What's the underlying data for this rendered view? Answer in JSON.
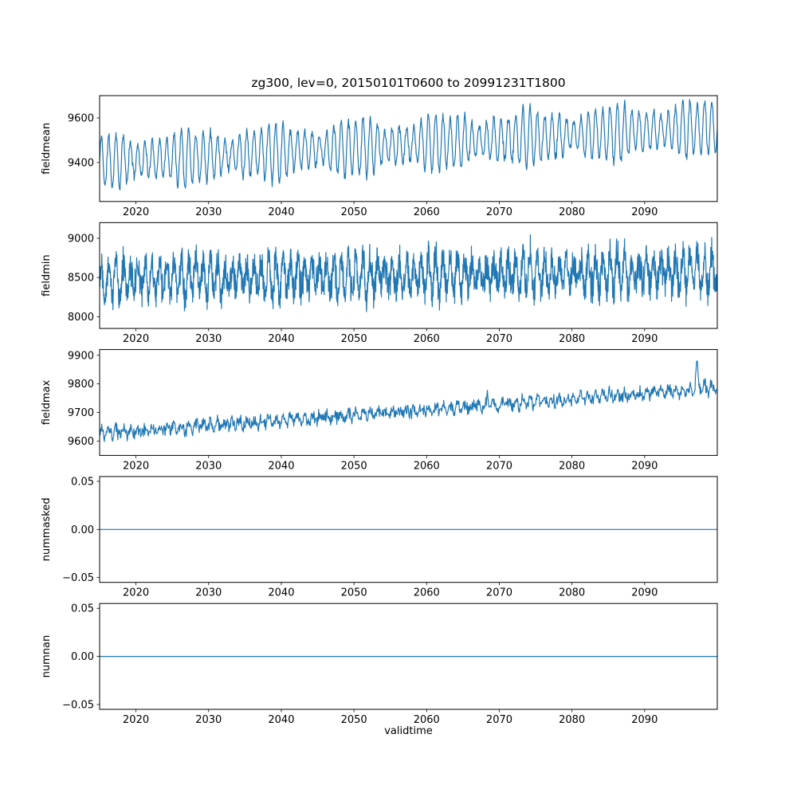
{
  "title": "zg300, lev=0, 20150101T0600 to 20991231T1800",
  "xlabel": "validtime",
  "line_color": "#1f77b4",
  "chart_data": [
    {
      "type": "line",
      "ylabel": "fieldmean",
      "xlim": [
        2015,
        2100
      ],
      "ylim": [
        9225,
        9700
      ],
      "xticks": [
        2020,
        2030,
        2040,
        2050,
        2060,
        2070,
        2080,
        2090
      ],
      "xticklabels": [
        "2020",
        "2030",
        "2040",
        "2050",
        "2060",
        "2070",
        "2080",
        "2090"
      ],
      "yticks": [
        9400,
        9600
      ],
      "yticklabels": [
        "9400",
        "9600"
      ],
      "model": {
        "seed": 11,
        "points_per_year": 16,
        "start": 9402,
        "end": 9558,
        "seasonal_amp": 100,
        "seasonal_period": 1,
        "noise_amp": 27
      }
    },
    {
      "type": "line",
      "ylabel": "fieldmin",
      "xlim": [
        2015,
        2100
      ],
      "ylim": [
        7850,
        9200
      ],
      "xticks": [
        2020,
        2030,
        2040,
        2050,
        2060,
        2070,
        2080,
        2090
      ],
      "xticklabels": [
        "2020",
        "2030",
        "2040",
        "2050",
        "2060",
        "2070",
        "2080",
        "2090"
      ],
      "yticks": [
        8000,
        8500,
        9000
      ],
      "yticklabels": [
        "8000",
        "8500",
        "9000"
      ],
      "model": {
        "seed": 22,
        "points_per_year": 30,
        "start": 8480,
        "end": 8580,
        "seasonal_amp": 190,
        "seasonal_period": 1,
        "noise_amp": 255
      }
    },
    {
      "type": "line",
      "ylabel": "fieldmax",
      "xlim": [
        2015,
        2100
      ],
      "ylim": [
        9550,
        9920
      ],
      "xticks": [
        2020,
        2030,
        2040,
        2050,
        2060,
        2070,
        2080,
        2090
      ],
      "xticklabels": [
        "2020",
        "2030",
        "2040",
        "2050",
        "2060",
        "2070",
        "2080",
        "2090"
      ],
      "yticks": [
        9600,
        9700,
        9800,
        9900
      ],
      "yticklabels": [
        "9600",
        "9700",
        "9800",
        "9900"
      ],
      "model": {
        "seed": 33,
        "points_per_year": 14,
        "start": 9625,
        "end": 9785,
        "seasonal_amp": 12,
        "seasonal_period": 1,
        "noise_amp": 27,
        "spikes": [
          {
            "t": 2097.2,
            "amp": 95,
            "width": 0.2
          },
          {
            "t": 2068.4,
            "amp": 40,
            "width": 0.12
          }
        ]
      }
    },
    {
      "type": "line",
      "ylabel": "nummasked",
      "xlim": [
        2015,
        2100
      ],
      "ylim": [
        -0.055,
        0.055
      ],
      "xticks": [
        2020,
        2030,
        2040,
        2050,
        2060,
        2070,
        2080,
        2090
      ],
      "xticklabels": [
        "2020",
        "2030",
        "2040",
        "2050",
        "2060",
        "2070",
        "2080",
        "2090"
      ],
      "yticks": [
        -0.05,
        0,
        0.05
      ],
      "yticklabels": [
        "−0.05",
        "0.00",
        "0.05"
      ],
      "model": {
        "constant": 0
      }
    },
    {
      "type": "line",
      "ylabel": "numnan",
      "xlim": [
        2015,
        2100
      ],
      "ylim": [
        -0.055,
        0.055
      ],
      "xticks": [
        2020,
        2030,
        2040,
        2050,
        2060,
        2070,
        2080,
        2090
      ],
      "xticklabels": [
        "2020",
        "2030",
        "2040",
        "2050",
        "2060",
        "2070",
        "2080",
        "2090"
      ],
      "yticks": [
        -0.05,
        0,
        0.05
      ],
      "yticklabels": [
        "−0.05",
        "0.00",
        "0.05"
      ],
      "model": {
        "constant": 0
      }
    }
  ]
}
